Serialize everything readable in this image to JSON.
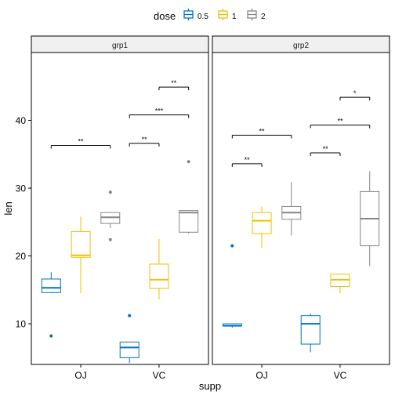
{
  "chart_data": {
    "type": "box",
    "xlabel": "supp",
    "ylabel": "len",
    "ylim": [
      4,
      50
    ],
    "yticks": [
      10,
      20,
      30,
      40
    ],
    "legend": {
      "title": "dose",
      "position": "top",
      "entries": [
        {
          "label": "0.5",
          "color": "#0073C2"
        },
        {
          "label": "1",
          "color": "#EFC000"
        },
        {
          "label": "2",
          "color": "#868686"
        }
      ]
    },
    "panels": [
      {
        "strip": "grp1",
        "groups": [
          {
            "supp": "OJ",
            "boxes": [
              {
                "dose": "0.5",
                "lower": 14.5,
                "q1": 14.6,
                "median": 15.3,
                "q3": 16.6,
                "upper": 17.6,
                "outliers": [
                  8.2
                ]
              },
              {
                "dose": "1",
                "lower": 14.5,
                "q1": 19.8,
                "median": 20.1,
                "q3": 23.6,
                "upper": 25.8,
                "outliers": []
              },
              {
                "dose": "2",
                "lower": 24.1,
                "q1": 24.8,
                "median": 25.7,
                "q3": 26.4,
                "upper": 26.4,
                "outliers": [
                  22.4,
                  29.4
                ]
              }
            ]
          },
          {
            "supp": "VC",
            "boxes": [
              {
                "dose": "0.5",
                "lower": 4.2,
                "q1": 5.0,
                "median": 6.5,
                "q3": 7.3,
                "upper": 7.3,
                "outliers": [
                  11.2
                ]
              },
              {
                "dose": "1",
                "lower": 13.6,
                "q1": 15.2,
                "median": 16.5,
                "q3": 18.8,
                "upper": 22.5,
                "outliers": []
              },
              {
                "dose": "2",
                "lower": 23.3,
                "q1": 23.5,
                "median": 26.4,
                "q3": 26.7,
                "upper": 26.7,
                "outliers": [
                  33.9
                ]
              }
            ]
          }
        ],
        "brackets": [
          {
            "supp": "OJ",
            "from": "0.5",
            "to": "2",
            "y": 36.3,
            "label": "**"
          },
          {
            "supp": "VC",
            "from": "0.5",
            "to": "1",
            "y": 36.6,
            "label": "**"
          },
          {
            "supp": "VC",
            "from": "0.5",
            "to": "2",
            "y": 40.8,
            "label": "***"
          },
          {
            "supp": "VC",
            "from": "1",
            "to": "2",
            "y": 44.9,
            "label": "**"
          }
        ]
      },
      {
        "strip": "grp2",
        "groups": [
          {
            "supp": "OJ",
            "boxes": [
              {
                "dose": "0.5",
                "lower": 9.4,
                "q1": 9.7,
                "median": 9.7,
                "q3": 10.0,
                "upper": 10.0,
                "outliers": [
                  21.5
                ]
              },
              {
                "dose": "1",
                "lower": 21.2,
                "q1": 23.3,
                "median": 25.2,
                "q3": 26.4,
                "upper": 27.3,
                "outliers": []
              },
              {
                "dose": "2",
                "lower": 23.0,
                "q1": 25.4,
                "median": 26.4,
                "q3": 27.3,
                "upper": 30.9,
                "outliers": []
              }
            ]
          },
          {
            "supp": "VC",
            "boxes": [
              {
                "dose": "0.5",
                "lower": 5.8,
                "q1": 7.0,
                "median": 10.0,
                "q3": 11.2,
                "upper": 11.5,
                "outliers": []
              },
              {
                "dose": "1",
                "lower": 14.5,
                "q1": 15.5,
                "median": 16.5,
                "q3": 17.3,
                "upper": 17.3,
                "outliers": []
              },
              {
                "dose": "2",
                "lower": 18.5,
                "q1": 21.5,
                "median": 25.5,
                "q3": 29.5,
                "upper": 32.5,
                "outliers": []
              }
            ]
          }
        ],
        "brackets": [
          {
            "supp": "OJ",
            "from": "0.5",
            "to": "1",
            "y": 33.6,
            "label": "**"
          },
          {
            "supp": "OJ",
            "from": "0.5",
            "to": "2",
            "y": 37.8,
            "label": "**"
          },
          {
            "supp": "VC",
            "from": "0.5",
            "to": "1",
            "y": 35.2,
            "label": "**"
          },
          {
            "supp": "VC",
            "from": "0.5",
            "to": "2",
            "y": 39.3,
            "label": "**"
          },
          {
            "supp": "VC",
            "from": "1",
            "to": "2",
            "y": 43.4,
            "label": "*"
          }
        ]
      }
    ]
  }
}
